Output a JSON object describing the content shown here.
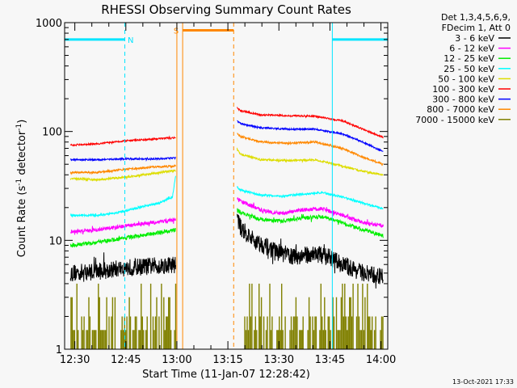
{
  "chart_data": {
    "type": "line",
    "title": "RHESSI Observing Summary Count Rates",
    "xlabel": "Start Time (11-Jan-07 12:28:42)",
    "ylabel_main": "Count Rate (s",
    "ylabel_sup1": "-1",
    "ylabel_mid": " detector",
    "ylabel_sup2": "-1",
    "ylabel_end": ")",
    "ylog": true,
    "xlim_min": [
      -1.7,
      93.3
    ],
    "ylim": [
      1,
      1000
    ],
    "x_ticks": [
      {
        "min": 1.3,
        "label": "12:30"
      },
      {
        "min": 16.3,
        "label": "12:45"
      },
      {
        "min": 31.3,
        "label": "13:00"
      },
      {
        "min": 46.3,
        "label": "13:15"
      },
      {
        "min": 61.3,
        "label": "13:30"
      },
      {
        "min": 76.3,
        "label": "13:45"
      },
      {
        "min": 91.3,
        "label": "14:00"
      }
    ],
    "y_ticks": [
      {
        "value": 1,
        "label": "1"
      },
      {
        "value": 10,
        "label": "10"
      },
      {
        "value": 100,
        "label": "100"
      },
      {
        "value": 1000,
        "label": "1000"
      }
    ],
    "legend_header": [
      "Det 1,3,4,5,6,9,",
      "FDecim 1, Att 0"
    ],
    "legend_placement": "right",
    "series": [
      {
        "name": "3 - 6 keV",
        "color": "#000000",
        "seg1": [
          [
            0,
            5.0
          ],
          [
            8,
            5.2
          ],
          [
            16,
            5.6
          ],
          [
            24,
            5.8
          ],
          [
            31,
            6.0
          ]
        ],
        "seg2": [
          [
            49,
            17
          ],
          [
            50,
            13
          ],
          [
            54,
            10
          ],
          [
            60,
            8.0
          ],
          [
            66,
            7.0
          ],
          [
            72,
            7.6
          ],
          [
            76,
            7.0
          ],
          [
            80,
            6.0
          ],
          [
            86,
            5.0
          ],
          [
            92,
            4.6
          ]
        ],
        "noise": 0.45
      },
      {
        "name": "6 - 12 keV",
        "color": "#ff00ff",
        "seg1": [
          [
            0,
            12
          ],
          [
            8,
            12.5
          ],
          [
            16,
            13.5
          ],
          [
            24,
            14.5
          ],
          [
            31,
            15.5
          ]
        ],
        "seg2": [
          [
            49,
            24
          ],
          [
            50,
            23
          ],
          [
            56,
            19
          ],
          [
            62,
            17.5
          ],
          [
            68,
            19
          ],
          [
            74,
            19.5
          ],
          [
            80,
            17
          ],
          [
            86,
            14.5
          ],
          [
            92,
            13.5
          ]
        ],
        "noise": 0.1
      },
      {
        "name": "12 - 25 keV",
        "color": "#00ee00",
        "seg1": [
          [
            0,
            9
          ],
          [
            8,
            9.6
          ],
          [
            16,
            10.5
          ],
          [
            24,
            11.5
          ],
          [
            31,
            12.5
          ]
        ],
        "seg2": [
          [
            49,
            19
          ],
          [
            50,
            18
          ],
          [
            56,
            15.5
          ],
          [
            62,
            15
          ],
          [
            68,
            16
          ],
          [
            74,
            16.5
          ],
          [
            80,
            14.5
          ],
          [
            86,
            12.5
          ],
          [
            92,
            11
          ]
        ],
        "noise": 0.1
      },
      {
        "name": "25 - 50 keV",
        "color": "#00ffff",
        "seg1": [
          [
            0,
            17
          ],
          [
            8,
            17
          ],
          [
            14,
            18
          ],
          [
            20,
            20
          ],
          [
            26,
            22
          ],
          [
            30,
            25
          ],
          [
            31,
            40
          ]
        ],
        "seg2": [
          [
            49,
            31
          ],
          [
            50,
            29
          ],
          [
            56,
            26
          ],
          [
            62,
            25.5
          ],
          [
            68,
            26.5
          ],
          [
            74,
            27.5
          ],
          [
            80,
            25
          ],
          [
            86,
            22
          ],
          [
            92,
            19.5
          ]
        ],
        "noise": 0.05
      },
      {
        "name": "50 - 100 keV",
        "color": "#dddd00",
        "seg1": [
          [
            0,
            37
          ],
          [
            8,
            36
          ],
          [
            16,
            38
          ],
          [
            24,
            41
          ],
          [
            31,
            44
          ]
        ],
        "seg2": [
          [
            49,
            70
          ],
          [
            50,
            62
          ],
          [
            56,
            55
          ],
          [
            64,
            54
          ],
          [
            72,
            55
          ],
          [
            80,
            48
          ],
          [
            86,
            43
          ],
          [
            92,
            40
          ]
        ],
        "noise": 0.05
      },
      {
        "name": "100 - 300 keV",
        "color": "#ff0000",
        "seg1": [
          [
            0,
            75
          ],
          [
            8,
            77
          ],
          [
            16,
            82
          ],
          [
            24,
            85
          ],
          [
            31,
            88
          ]
        ],
        "seg2": [
          [
            49,
            165
          ],
          [
            50,
            155
          ],
          [
            56,
            142
          ],
          [
            64,
            140
          ],
          [
            72,
            138
          ],
          [
            80,
            125
          ],
          [
            86,
            105
          ],
          [
            92,
            88
          ]
        ],
        "noise": 0.04
      },
      {
        "name": "300 - 800 keV",
        "color": "#0000ff",
        "seg1": [
          [
            0,
            55
          ],
          [
            8,
            55
          ],
          [
            16,
            56
          ],
          [
            24,
            56
          ],
          [
            31,
            57
          ]
        ],
        "seg2": [
          [
            49,
            125
          ],
          [
            50,
            118
          ],
          [
            56,
            108
          ],
          [
            64,
            105
          ],
          [
            72,
            105
          ],
          [
            80,
            95
          ],
          [
            86,
            80
          ],
          [
            92,
            65
          ]
        ],
        "noise": 0.04
      },
      {
        "name": "800 - 7000 keV",
        "color": "#ff8800",
        "seg1": [
          [
            0,
            42
          ],
          [
            8,
            42
          ],
          [
            16,
            45
          ],
          [
            24,
            47
          ],
          [
            31,
            48
          ]
        ],
        "seg2": [
          [
            49,
            95
          ],
          [
            50,
            90
          ],
          [
            56,
            80
          ],
          [
            64,
            78
          ],
          [
            72,
            80
          ],
          [
            80,
            70
          ],
          [
            86,
            58
          ],
          [
            92,
            50
          ]
        ],
        "noise": 0.05
      },
      {
        "name": "7000 - 15000 keV",
        "color": "#808000",
        "seg1": [
          [
            0,
            1.5
          ],
          [
            31,
            1.5
          ]
        ],
        "seg2": [
          [
            49,
            1.6
          ],
          [
            92,
            1.6
          ]
        ],
        "noise": 0.0
      }
    ],
    "saa_bars": [
      {
        "start": -1.7,
        "end": 16.0,
        "value": 700,
        "color": "#00e5ff"
      },
      {
        "start": 77.0,
        "end": 93.3,
        "value": 700,
        "color": "#00e5ff"
      }
    ],
    "eclipse_start_lines": [
      {
        "min": -1.7,
        "color": "#00e5ff",
        "style": "solid"
      },
      {
        "min": 77.0,
        "color": "#00e5ff",
        "style": "solid"
      }
    ],
    "eclipse_end_lines": [
      {
        "min": 16.0,
        "color": "#00e5ff",
        "style": "dashed"
      },
      {
        "min": 93.3,
        "color": "#00e5ff",
        "style": "dashed"
      }
    ],
    "saa_lines": [
      {
        "min": 33.0,
        "color": "#ff8800",
        "style": "solid"
      },
      {
        "min": 31.3,
        "color": "#ff8800",
        "style": "solid"
      },
      {
        "min": 48.0,
        "color": "#ff8800",
        "style": "dashed"
      }
    ],
    "saa_bar": {
      "start": 33.0,
      "end": 48.0,
      "value": 850,
      "color": "#ff8800"
    },
    "markers": [
      {
        "text": "N",
        "min": 17.7,
        "value": 700,
        "color": "#00e5ff"
      },
      {
        "text": "S",
        "min": 31.1,
        "value": 850,
        "color": "#ff8800"
      }
    ]
  },
  "footer": {
    "timestamp": "13-Oct-2021 17:33"
  }
}
